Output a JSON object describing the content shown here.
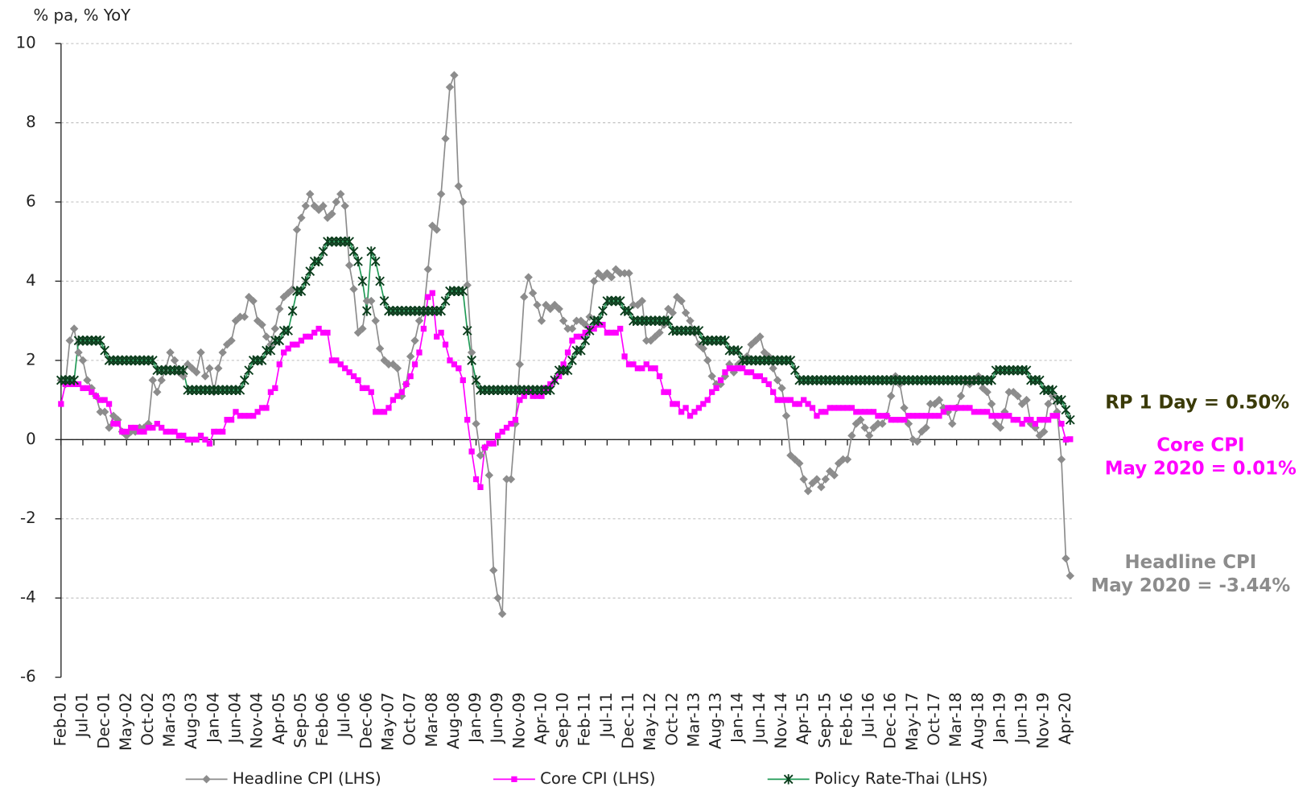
{
  "chart_data": {
    "type": "line",
    "axis_label": "% pa, % YoY",
    "categories": [
      "Feb-01",
      null,
      null,
      null,
      null,
      "Jul-01",
      null,
      null,
      null,
      null,
      "Dec-01",
      null,
      null,
      null,
      null,
      "May-02",
      null,
      null,
      null,
      null,
      "Oct-02",
      null,
      null,
      null,
      null,
      "Mar-03",
      null,
      null,
      null,
      null,
      "Aug-03",
      null,
      null,
      null,
      null,
      "Jan-04",
      null,
      null,
      null,
      null,
      "Jun-04",
      null,
      null,
      null,
      null,
      "Nov-04",
      null,
      null,
      null,
      null,
      "Apr-05",
      null,
      null,
      null,
      null,
      "Sep-05",
      null,
      null,
      null,
      null,
      "Feb-06",
      null,
      null,
      null,
      null,
      "Jul-06",
      null,
      null,
      null,
      null,
      "Dec-06",
      null,
      null,
      null,
      null,
      "May-07",
      null,
      null,
      null,
      null,
      "Oct-07",
      null,
      null,
      null,
      null,
      "Mar-08",
      null,
      null,
      null,
      null,
      "Aug-08",
      null,
      null,
      null,
      null,
      "Jan-09",
      null,
      null,
      null,
      null,
      "Jun-09",
      null,
      null,
      null,
      null,
      "Nov-09",
      null,
      null,
      null,
      null,
      "Apr-10",
      null,
      null,
      null,
      null,
      "Sep-10",
      null,
      null,
      null,
      null,
      "Feb-11",
      null,
      null,
      null,
      null,
      "Jul-11",
      null,
      null,
      null,
      null,
      "Dec-11",
      null,
      null,
      null,
      null,
      "May-12",
      null,
      null,
      null,
      null,
      "Oct-12",
      null,
      null,
      null,
      null,
      "Mar-13",
      null,
      null,
      null,
      null,
      "Aug-13",
      null,
      null,
      null,
      null,
      "Jan-14",
      null,
      null,
      null,
      null,
      "Jun-14",
      null,
      null,
      null,
      null,
      "Nov-14",
      null,
      null,
      null,
      null,
      "Apr-15",
      null,
      null,
      null,
      null,
      "Sep-15",
      null,
      null,
      null,
      null,
      "Feb-16",
      null,
      null,
      null,
      null,
      "Jul-16",
      null,
      null,
      null,
      null,
      "Dec-16",
      null,
      null,
      null,
      null,
      "May-17",
      null,
      null,
      null,
      null,
      "Oct-17",
      null,
      null,
      null,
      null,
      "Mar-18",
      null,
      null,
      null,
      null,
      "Aug-18",
      null,
      null,
      null,
      null,
      "Jan-19",
      null,
      null,
      null,
      null,
      "Jun-19",
      null,
      null,
      null,
      null,
      "Nov-19",
      null,
      null,
      null,
      null,
      "Apr-20",
      null
    ],
    "series": [
      {
        "name": "Headline CPI (LHS)",
        "color": "#8c8c8c",
        "marker": "diamond",
        "values": [
          1.5,
          1.4,
          2.5,
          2.8,
          2.2,
          2.0,
          1.5,
          1.3,
          1.1,
          0.7,
          0.7,
          0.3,
          0.6,
          0.5,
          0.2,
          0.1,
          0.2,
          0.2,
          0.3,
          0.3,
          0.4,
          1.5,
          1.2,
          1.5,
          1.8,
          2.2,
          2.0,
          1.7,
          1.6,
          1.9,
          1.8,
          1.7,
          2.2,
          1.6,
          1.8,
          1.2,
          1.8,
          2.2,
          2.4,
          2.5,
          3.0,
          3.1,
          3.1,
          3.6,
          3.5,
          3.0,
          2.9,
          2.6,
          2.4,
          2.8,
          3.3,
          3.6,
          3.7,
          3.8,
          5.3,
          5.6,
          5.9,
          6.2,
          5.9,
          5.8,
          5.9,
          5.6,
          5.7,
          6.0,
          6.2,
          5.9,
          4.4,
          3.8,
          2.7,
          2.8,
          3.5,
          3.5,
          3.0,
          2.3,
          2.0,
          1.9,
          1.9,
          1.8,
          1.1,
          1.4,
          2.1,
          2.5,
          3.0,
          3.2,
          4.3,
          5.4,
          5.3,
          6.2,
          7.6,
          8.9,
          9.2,
          6.4,
          6.0,
          3.9,
          2.2,
          0.4,
          -0.4,
          -0.2,
          -0.9,
          -3.3,
          -4.0,
          -4.4,
          -1.0,
          -1.0,
          0.4,
          1.9,
          3.6,
          4.1,
          3.7,
          3.4,
          3.0,
          3.4,
          3.3,
          3.4,
          3.3,
          3.0,
          2.8,
          2.8,
          3.0,
          3.0,
          2.9,
          3.1,
          4.0,
          4.2,
          4.1,
          4.2,
          4.1,
          4.3,
          4.2,
          4.2,
          4.2,
          3.4,
          3.4,
          3.5,
          2.5,
          2.5,
          2.6,
          2.7,
          2.9,
          3.3,
          3.2,
          3.6,
          3.5,
          3.2,
          3.0,
          2.7,
          2.4,
          2.3,
          2.0,
          1.6,
          1.4,
          1.4,
          1.6,
          1.9,
          1.7,
          1.9,
          2.0,
          2.1,
          2.4,
          2.5,
          2.6,
          2.2,
          2.1,
          1.8,
          1.5,
          1.3,
          0.6,
          -0.4,
          -0.5,
          -0.6,
          -1.0,
          -1.3,
          -1.1,
          -1.0,
          -1.2,
          -1.0,
          -0.8,
          -0.9,
          -0.6,
          -0.5,
          -0.5,
          0.1,
          0.4,
          0.5,
          0.3,
          0.1,
          0.3,
          0.4,
          0.4,
          0.6,
          1.1,
          1.6,
          1.4,
          0.8,
          0.4,
          0.0,
          -0.05,
          0.2,
          0.3,
          0.9,
          0.9,
          1.0,
          0.8,
          0.7,
          0.4,
          0.8,
          1.1,
          1.5,
          1.4,
          1.5,
          1.6,
          1.3,
          1.2,
          0.9,
          0.4,
          0.3,
          0.7,
          1.2,
          1.2,
          1.1,
          0.9,
          1.0,
          0.4,
          0.3,
          0.1,
          0.2,
          0.9,
          1.1,
          0.7,
          -0.5,
          -3.0,
          -3.44
        ]
      },
      {
        "name": "Core CPI (LHS)",
        "color": "#ff00ff",
        "marker": "square",
        "values": [
          0.9,
          1.4,
          1.4,
          1.4,
          1.4,
          1.3,
          1.3,
          1.2,
          1.1,
          1.0,
          1.0,
          0.9,
          0.4,
          0.4,
          0.2,
          0.2,
          0.3,
          0.3,
          0.2,
          0.2,
          0.3,
          0.3,
          0.4,
          0.3,
          0.2,
          0.2,
          0.2,
          0.1,
          0.1,
          0.0,
          0.0,
          0.0,
          0.1,
          0.0,
          -0.1,
          0.2,
          0.2,
          0.2,
          0.5,
          0.5,
          0.7,
          0.6,
          0.6,
          0.6,
          0.6,
          0.7,
          0.8,
          0.8,
          1.2,
          1.3,
          1.9,
          2.2,
          2.3,
          2.4,
          2.4,
          2.5,
          2.6,
          2.6,
          2.7,
          2.8,
          2.7,
          2.7,
          2.0,
          2.0,
          1.9,
          1.8,
          1.7,
          1.6,
          1.5,
          1.3,
          1.3,
          1.2,
          0.7,
          0.7,
          0.7,
          0.8,
          1.0,
          1.1,
          1.2,
          1.4,
          1.6,
          1.9,
          2.2,
          2.8,
          3.6,
          3.7,
          2.6,
          2.7,
          2.4,
          2.0,
          1.9,
          1.8,
          1.5,
          0.5,
          -0.3,
          -1.0,
          -1.2,
          -0.2,
          -0.1,
          -0.1,
          0.1,
          0.2,
          0.3,
          0.4,
          0.5,
          1.0,
          1.1,
          1.2,
          1.1,
          1.1,
          1.1,
          1.3,
          1.4,
          1.5,
          1.6,
          1.9,
          2.2,
          2.5,
          2.6,
          2.6,
          2.7,
          2.8,
          2.8,
          2.9,
          2.9,
          2.7,
          2.7,
          2.7,
          2.8,
          2.1,
          1.9,
          1.9,
          1.8,
          1.8,
          1.9,
          1.8,
          1.8,
          1.6,
          1.2,
          1.2,
          0.9,
          0.9,
          0.7,
          0.8,
          0.6,
          0.7,
          0.8,
          0.9,
          1.0,
          1.2,
          1.3,
          1.5,
          1.7,
          1.8,
          1.8,
          1.8,
          1.8,
          1.7,
          1.7,
          1.6,
          1.6,
          1.5,
          1.4,
          1.2,
          1.0,
          1.0,
          1.0,
          1.0,
          0.9,
          0.9,
          1.0,
          0.9,
          0.8,
          0.6,
          0.7,
          0.7,
          0.8,
          0.8,
          0.8,
          0.8,
          0.8,
          0.8,
          0.7,
          0.7,
          0.7,
          0.7,
          0.7,
          0.6,
          0.6,
          0.6,
          0.5,
          0.5,
          0.5,
          0.5,
          0.6,
          0.6,
          0.6,
          0.6,
          0.6,
          0.6,
          0.6,
          0.6,
          0.7,
          0.8,
          0.8,
          0.8,
          0.8,
          0.8,
          0.8,
          0.7,
          0.7,
          0.7,
          0.7,
          0.6,
          0.6,
          0.6,
          0.6,
          0.6,
          0.5,
          0.5,
          0.4,
          0.5,
          0.5,
          0.4,
          0.5,
          0.5,
          0.5,
          0.6,
          0.6,
          0.4,
          0.0,
          0.01
        ]
      },
      {
        "name": "Policy Rate-Thai (LHS)",
        "color": "#1f9a55",
        "marker_color": "#0b3d1c",
        "marker": "star",
        "values": [
          1.5,
          1.5,
          1.5,
          1.5,
          2.5,
          2.5,
          2.5,
          2.5,
          2.5,
          2.5,
          2.25,
          2.0,
          2.0,
          2.0,
          2.0,
          2.0,
          2.0,
          2.0,
          2.0,
          2.0,
          2.0,
          2.0,
          1.75,
          1.75,
          1.75,
          1.75,
          1.75,
          1.75,
          1.75,
          1.25,
          1.25,
          1.25,
          1.25,
          1.25,
          1.25,
          1.25,
          1.25,
          1.25,
          1.25,
          1.25,
          1.25,
          1.25,
          1.5,
          1.75,
          2.0,
          2.0,
          2.0,
          2.25,
          2.25,
          2.5,
          2.5,
          2.75,
          2.75,
          3.25,
          3.75,
          3.75,
          4.0,
          4.25,
          4.5,
          4.5,
          4.75,
          5.0,
          5.0,
          5.0,
          5.0,
          5.0,
          5.0,
          4.75,
          4.5,
          4.0,
          3.25,
          4.75,
          4.5,
          4.0,
          3.5,
          3.25,
          3.25,
          3.25,
          3.25,
          3.25,
          3.25,
          3.25,
          3.25,
          3.25,
          3.25,
          3.25,
          3.25,
          3.25,
          3.5,
          3.75,
          3.75,
          3.75,
          3.75,
          2.75,
          2.0,
          1.5,
          1.25,
          1.25,
          1.25,
          1.25,
          1.25,
          1.25,
          1.25,
          1.25,
          1.25,
          1.25,
          1.25,
          1.25,
          1.25,
          1.25,
          1.25,
          1.25,
          1.25,
          1.5,
          1.75,
          1.75,
          1.75,
          2.0,
          2.25,
          2.25,
          2.5,
          2.75,
          3.0,
          3.0,
          3.25,
          3.5,
          3.5,
          3.5,
          3.5,
          3.25,
          3.25,
          3.0,
          3.0,
          3.0,
          3.0,
          3.0,
          3.0,
          3.0,
          3.0,
          3.0,
          2.75,
          2.75,
          2.75,
          2.75,
          2.75,
          2.75,
          2.75,
          2.5,
          2.5,
          2.5,
          2.5,
          2.5,
          2.5,
          2.25,
          2.25,
          2.25,
          2.0,
          2.0,
          2.0,
          2.0,
          2.0,
          2.0,
          2.0,
          2.0,
          2.0,
          2.0,
          2.0,
          2.0,
          1.75,
          1.5,
          1.5,
          1.5,
          1.5,
          1.5,
          1.5,
          1.5,
          1.5,
          1.5,
          1.5,
          1.5,
          1.5,
          1.5,
          1.5,
          1.5,
          1.5,
          1.5,
          1.5,
          1.5,
          1.5,
          1.5,
          1.5,
          1.5,
          1.5,
          1.5,
          1.5,
          1.5,
          1.5,
          1.5,
          1.5,
          1.5,
          1.5,
          1.5,
          1.5,
          1.5,
          1.5,
          1.5,
          1.5,
          1.5,
          1.5,
          1.5,
          1.5,
          1.5,
          1.5,
          1.5,
          1.75,
          1.75,
          1.75,
          1.75,
          1.75,
          1.75,
          1.75,
          1.75,
          1.5,
          1.5,
          1.5,
          1.25,
          1.25,
          1.25,
          1.0,
          1.0,
          0.75,
          0.5
        ]
      }
    ],
    "ylim": [
      -6,
      10
    ],
    "yticks": [
      -6,
      -4,
      -2,
      0,
      2,
      4,
      6,
      8,
      10
    ],
    "grid": true,
    "legend": "bottom",
    "annotations": [
      {
        "lines": [
          "RP 1 Day = 0.50%"
        ],
        "color": "#3a3a08"
      },
      {
        "lines": [
          "Core CPI",
          "May 2020 = 0.01%"
        ],
        "color": "#ff00ff"
      },
      {
        "lines": [
          "Headline CPI",
          "May 2020 = -3.44%"
        ],
        "color": "#8c8c8c"
      }
    ]
  }
}
